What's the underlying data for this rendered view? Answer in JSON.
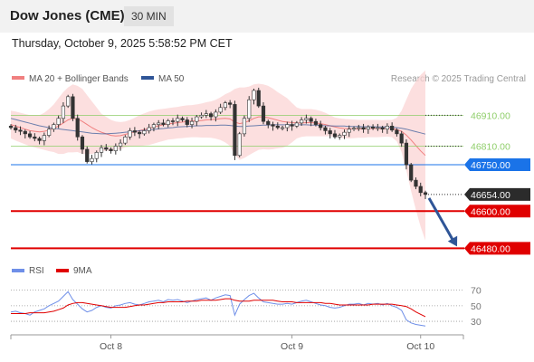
{
  "header": {
    "title": "Dow Jones (CME)",
    "timeframe": "30 MIN"
  },
  "datetime": "Thursday, October 9, 2025 5:58:52 PM CET",
  "legend": {
    "bb_label": "MA 20 + Bollinger Bands",
    "ma50_label": "MA 50",
    "copyright": "Research © 2025 Trading Central",
    "rsi_label": "RSI",
    "rsi_ma_label": "9MA"
  },
  "colors": {
    "bb_band": "#fbd4d4",
    "bb_line": "#f08080",
    "ma50": "#2f5597",
    "support": "#e00000",
    "pivot": "#1a73e8",
    "green_level": "#8fce6a",
    "candle": "#333333",
    "rsi": "#6f8fe8",
    "rsi_ma": "#e00000",
    "arrow": "#2f5597"
  },
  "chart_data": [
    {
      "type": "candlestick",
      "title": "Dow Jones (CME)",
      "ylim": [
        46440,
        46990
      ],
      "x_labels": [
        "Oct 8",
        "Oct 9",
        "Oct 10"
      ],
      "price_levels": [
        {
          "label": "46910.00",
          "value": 46910,
          "kind": "resistance"
        },
        {
          "label": "46810.00",
          "value": 46810,
          "kind": "resistance"
        },
        {
          "label": "46750.00",
          "value": 46750,
          "kind": "pivot"
        },
        {
          "label": "46654.00",
          "value": 46654,
          "kind": "last"
        },
        {
          "label": "46600.00",
          "value": 46600,
          "kind": "support"
        },
        {
          "label": "46480.00",
          "value": 46480,
          "kind": "support"
        }
      ],
      "closes": [
        46870,
        46862,
        46858,
        46850,
        46840,
        46835,
        46828,
        46845,
        46865,
        46880,
        46900,
        46940,
        46970,
        46900,
        46840,
        46800,
        46760,
        46770,
        46790,
        46805,
        46800,
        46795,
        46810,
        46820,
        46840,
        46860,
        46855,
        46850,
        46860,
        46870,
        46880,
        46885,
        46880,
        46892,
        46890,
        46900,
        46895,
        46880,
        46890,
        46905,
        46910,
        46915,
        46905,
        46920,
        46935,
        46950,
        46945,
        46780,
        46850,
        46900,
        46960,
        46990,
        46940,
        46890,
        46880,
        46875,
        46870,
        46870,
        46880,
        46875,
        46885,
        46895,
        46900,
        46890,
        46880,
        46870,
        46860,
        46850,
        46840,
        46845,
        46855,
        46865,
        46868,
        46870,
        46865,
        46872,
        46868,
        46870,
        46865,
        46875,
        46862,
        46850,
        46820,
        46750,
        46700,
        46680,
        46660,
        46654
      ],
      "ma20": [
        46880,
        46875,
        46870,
        46865,
        46860,
        46858,
        46856,
        46858,
        46862,
        46868,
        46875,
        46885,
        46895,
        46900,
        46898,
        46890,
        46880,
        46870,
        46862,
        46855,
        46850,
        46845,
        46843,
        46844,
        46848,
        46852,
        46856,
        46860,
        46864,
        46868,
        46872,
        46876,
        46879,
        46882,
        46884,
        46886,
        46888,
        46890,
        46891,
        46892,
        46893,
        46895,
        46896,
        46897,
        46899,
        46900,
        46898,
        46888,
        46883,
        46886,
        46892,
        46900,
        46905,
        46905,
        46902,
        46898,
        46894,
        46890,
        46888,
        46886,
        46885,
        46885,
        46886,
        46886,
        46885,
        46883,
        46880,
        46876,
        46872,
        46869,
        46867,
        46866,
        46866,
        46866,
        46866,
        46867,
        46867,
        46867,
        46867,
        46868,
        46867,
        46864,
        46858,
        46846,
        46830,
        46812,
        46795,
        46780
      ],
      "bb_upper": [
        46925,
        46922,
        46918,
        46914,
        46910,
        46910,
        46910,
        46918,
        46930,
        46945,
        46965,
        46985,
        47000,
        47010,
        47005,
        46995,
        46975,
        46955,
        46935,
        46915,
        46905,
        46895,
        46890,
        46888,
        46890,
        46895,
        46902,
        46910,
        46916,
        46922,
        46926,
        46929,
        46931,
        46933,
        46935,
        46937,
        46940,
        46942,
        46943,
        46945,
        46948,
        46952,
        46955,
        46960,
        46968,
        46978,
        46985,
        46995,
        47000,
        47000,
        47003,
        47010,
        47012,
        47010,
        47005,
        46996,
        46985,
        46975,
        46965,
        46950,
        46935,
        46930,
        46930,
        46930,
        46928,
        46924,
        46918,
        46910,
        46903,
        46900,
        46898,
        46897,
        46896,
        46895,
        46895,
        46895,
        46895,
        46895,
        46894,
        46895,
        46895,
        46902,
        46925,
        46960,
        46995,
        47020,
        47040,
        47055
      ],
      "bb_lower": [
        46835,
        46828,
        46822,
        46816,
        46810,
        46806,
        46802,
        46798,
        46794,
        46791,
        46785,
        46785,
        46790,
        46790,
        46791,
        46785,
        46785,
        46785,
        46789,
        46795,
        46795,
        46795,
        46796,
        46800,
        46806,
        46809,
        46810,
        46810,
        46812,
        46814,
        46818,
        46823,
        46827,
        46831,
        46833,
        46835,
        46836,
        46838,
        46839,
        46839,
        46838,
        46838,
        46837,
        46834,
        46830,
        46822,
        46811,
        46781,
        46766,
        46772,
        46781,
        46790,
        46798,
        46800,
        46799,
        46800,
        46803,
        46805,
        46811,
        46822,
        46835,
        46840,
        46842,
        46842,
        46842,
        46842,
        46842,
        46842,
        46841,
        46838,
        46836,
        46835,
        46836,
        46837,
        46837,
        46839,
        46839,
        46839,
        46840,
        46841,
        46839,
        46826,
        46791,
        46732,
        46665,
        46604,
        46550,
        46505
      ],
      "ma50": [
        46900,
        46896,
        46892,
        46888,
        46884,
        46880,
        46876,
        46873,
        46870,
        46868,
        46866,
        46864,
        46862,
        46860,
        46858,
        46856,
        46854,
        46852,
        46851,
        46850,
        46850,
        46851,
        46852,
        46853,
        46855,
        46856,
        46858,
        46860,
        46861,
        46863,
        46864,
        46866,
        46867,
        46869,
        46870,
        46872,
        46873,
        46874,
        46875,
        46876,
        46876,
        46877,
        46877,
        46877,
        46878,
        46878,
        46877,
        46875,
        46874,
        46874,
        46875,
        46876,
        46877,
        46878,
        46878,
        46879,
        46879,
        46879,
        46879,
        46879,
        46879,
        46879,
        46879,
        46878,
        46878,
        46877,
        46876,
        46876,
        46875,
        46875,
        46875,
        46874,
        46874,
        46874,
        46873,
        46873,
        46873,
        46872,
        46872,
        46872,
        46871,
        46870,
        46868,
        46865,
        46861,
        46857,
        46853,
        46849
      ]
    },
    {
      "type": "line",
      "title": "RSI",
      "ylim": [
        15,
        80
      ],
      "y_ticks": [
        70,
        50,
        30
      ],
      "series": [
        {
          "name": "RSI",
          "values": [
            42,
            43,
            41,
            40,
            38,
            42,
            44,
            46,
            50,
            53,
            56,
            62,
            68,
            58,
            52,
            46,
            42,
            44,
            48,
            50,
            48,
            47,
            50,
            51,
            53,
            54,
            52,
            51,
            53,
            55,
            56,
            57,
            55,
            58,
            57,
            58,
            56,
            54,
            56,
            58,
            59,
            60,
            57,
            60,
            62,
            64,
            63,
            38,
            52,
            58,
            63,
            66,
            60,
            55,
            54,
            53,
            52,
            52,
            53,
            52,
            54,
            56,
            57,
            55,
            53,
            51,
            50,
            48,
            47,
            48,
            50,
            52,
            52,
            53,
            51,
            53,
            52,
            53,
            51,
            53,
            50,
            48,
            44,
            32,
            28,
            26,
            25,
            24
          ]
        },
        {
          "name": "9MA",
          "values": [
            40,
            40,
            40,
            40,
            41,
            41,
            41,
            41,
            42,
            43,
            45,
            47,
            51,
            53,
            54,
            54,
            53,
            52,
            51,
            50,
            49,
            48,
            48,
            48,
            48,
            49,
            50,
            51,
            51,
            52,
            53,
            54,
            54,
            55,
            55,
            55,
            55,
            56,
            56,
            56,
            57,
            57,
            57,
            57,
            58,
            59,
            59,
            57,
            56,
            56,
            56,
            57,
            57,
            57,
            57,
            57,
            56,
            55,
            55,
            55,
            54,
            54,
            54,
            54,
            54,
            54,
            53,
            53,
            52,
            51,
            51,
            51,
            51,
            51,
            51,
            51,
            52,
            52,
            52,
            52,
            52,
            51,
            50,
            49,
            46,
            42,
            39,
            36
          ]
        }
      ]
    }
  ]
}
